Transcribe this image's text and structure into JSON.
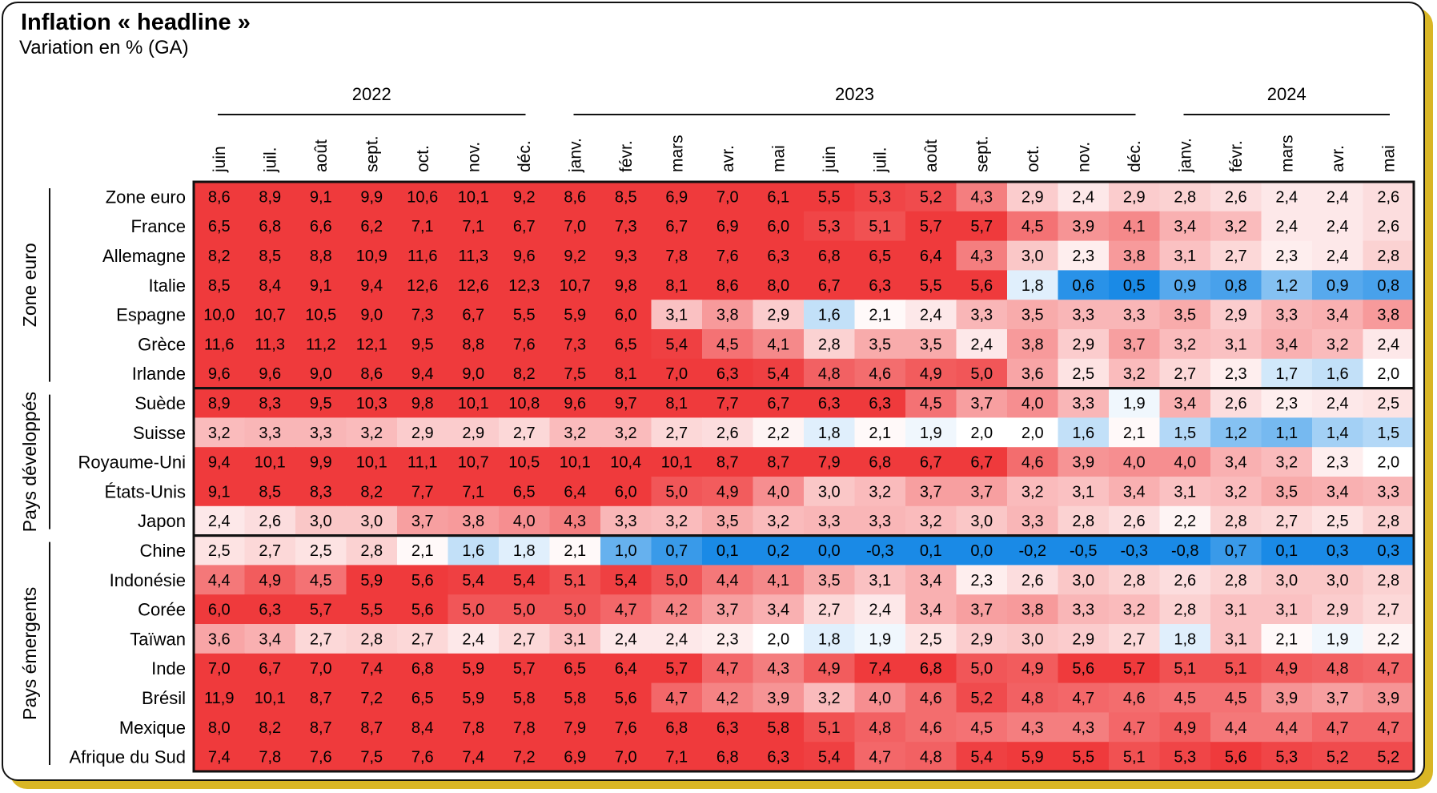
{
  "title": "Inflation « headline »",
  "subtitle": "Variation en % (GA)",
  "chart_data": {
    "type": "heatmap",
    "years": [
      {
        "label": "2022",
        "span": [
          0,
          6
        ]
      },
      {
        "label": "2023",
        "span": [
          7,
          18
        ]
      },
      {
        "label": "2024",
        "span": [
          19,
          23
        ]
      }
    ],
    "months": [
      "juin",
      "juil.",
      "août",
      "sept.",
      "oct.",
      "nov.",
      "déc.",
      "janv.",
      "févr.",
      "mars",
      "avr.",
      "mai",
      "juin",
      "juil.",
      "août",
      "sept.",
      "oct.",
      "nov.",
      "déc.",
      "janv.",
      "févr.",
      "mars",
      "avr.",
      "mai"
    ],
    "groups": [
      {
        "label": "Zone euro",
        "rows": [
          0,
          6
        ]
      },
      {
        "label": "Pays développés",
        "rows": [
          7,
          11
        ]
      },
      {
        "label": "Pays émergents",
        "rows": [
          12,
          19
        ]
      }
    ],
    "countries": [
      "Zone euro",
      "France",
      "Allemagne",
      "Italie",
      "Espagne",
      "Grèce",
      "Irlande",
      "Suède",
      "Suisse",
      "Royaume-Uni",
      "États-Unis",
      "Japon",
      "Chine",
      "Indonésie",
      "Corée",
      "Taïwan",
      "Inde",
      "Brésil",
      "Mexique",
      "Afrique du Sud"
    ],
    "values": [
      [
        8.6,
        8.9,
        9.1,
        9.9,
        10.6,
        10.1,
        9.2,
        8.6,
        8.5,
        6.9,
        7.0,
        6.1,
        5.5,
        5.3,
        5.2,
        4.3,
        2.9,
        2.4,
        2.9,
        2.8,
        2.6,
        2.4,
        2.4,
        2.6
      ],
      [
        6.5,
        6.8,
        6.6,
        6.2,
        7.1,
        7.1,
        6.7,
        7.0,
        7.3,
        6.7,
        6.9,
        6.0,
        5.3,
        5.1,
        5.7,
        5.7,
        4.5,
        3.9,
        4.1,
        3.4,
        3.2,
        2.4,
        2.4,
        2.6
      ],
      [
        8.2,
        8.5,
        8.8,
        10.9,
        11.6,
        11.3,
        9.6,
        9.2,
        9.3,
        7.8,
        7.6,
        6.3,
        6.8,
        6.5,
        6.4,
        4.3,
        3.0,
        2.3,
        3.8,
        3.1,
        2.7,
        2.3,
        2.4,
        2.8
      ],
      [
        8.5,
        8.4,
        9.1,
        9.4,
        12.6,
        12.6,
        12.3,
        10.7,
        9.8,
        8.1,
        8.6,
        8.0,
        6.7,
        6.3,
        5.5,
        5.6,
        1.8,
        0.6,
        0.5,
        0.9,
        0.8,
        1.2,
        0.9,
        0.8
      ],
      [
        10.0,
        10.7,
        10.5,
        9.0,
        7.3,
        6.7,
        5.5,
        5.9,
        6.0,
        3.1,
        3.8,
        2.9,
        1.6,
        2.1,
        2.4,
        3.3,
        3.5,
        3.3,
        3.3,
        3.5,
        2.9,
        3.3,
        3.4,
        3.8
      ],
      [
        11.6,
        11.3,
        11.2,
        12.1,
        9.5,
        8.8,
        7.6,
        7.3,
        6.5,
        5.4,
        4.5,
        4.1,
        2.8,
        3.5,
        3.5,
        2.4,
        3.8,
        2.9,
        3.7,
        3.2,
        3.1,
        3.4,
        3.2,
        2.4
      ],
      [
        9.6,
        9.6,
        9.0,
        8.6,
        9.4,
        9.0,
        8.2,
        7.5,
        8.1,
        7.0,
        6.3,
        5.4,
        4.8,
        4.6,
        4.9,
        5.0,
        3.6,
        2.5,
        3.2,
        2.7,
        2.3,
        1.7,
        1.6,
        2.0
      ],
      [
        8.9,
        8.3,
        9.5,
        10.3,
        9.8,
        10.1,
        10.8,
        9.6,
        9.7,
        8.1,
        7.7,
        6.7,
        6.3,
        6.3,
        4.5,
        3.7,
        4.0,
        3.3,
        1.9,
        3.4,
        2.6,
        2.3,
        2.4,
        2.5
      ],
      [
        3.2,
        3.3,
        3.3,
        3.2,
        2.9,
        2.9,
        2.7,
        3.2,
        3.2,
        2.7,
        2.6,
        2.2,
        1.8,
        2.1,
        1.9,
        2.0,
        2.0,
        1.6,
        2.1,
        1.5,
        1.2,
        1.1,
        1.4,
        1.5
      ],
      [
        9.4,
        10.1,
        9.9,
        10.1,
        11.1,
        10.7,
        10.5,
        10.1,
        10.4,
        10.1,
        8.7,
        8.7,
        7.9,
        6.8,
        6.7,
        6.7,
        4.6,
        3.9,
        4.0,
        4.0,
        3.4,
        3.2,
        2.3,
        2.0
      ],
      [
        9.1,
        8.5,
        8.3,
        8.2,
        7.7,
        7.1,
        6.5,
        6.4,
        6.0,
        5.0,
        4.9,
        4.0,
        3.0,
        3.2,
        3.7,
        3.7,
        3.2,
        3.1,
        3.4,
        3.1,
        3.2,
        3.5,
        3.4,
        3.3
      ],
      [
        2.4,
        2.6,
        3.0,
        3.0,
        3.7,
        3.8,
        4.0,
        4.3,
        3.3,
        3.2,
        3.5,
        3.2,
        3.3,
        3.3,
        3.2,
        3.0,
        3.3,
        2.8,
        2.6,
        2.2,
        2.8,
        2.7,
        2.5,
        2.8
      ],
      [
        2.5,
        2.7,
        2.5,
        2.8,
        2.1,
        1.6,
        1.8,
        2.1,
        1.0,
        0.7,
        0.1,
        0.2,
        0.0,
        -0.3,
        0.1,
        0.0,
        -0.2,
        -0.5,
        -0.3,
        -0.8,
        0.7,
        0.1,
        0.3,
        0.3
      ],
      [
        4.4,
        4.9,
        4.5,
        5.9,
        5.6,
        5.4,
        5.4,
        5.1,
        5.4,
        5.0,
        4.4,
        4.1,
        3.5,
        3.1,
        3.4,
        2.3,
        2.6,
        3.0,
        2.8,
        2.6,
        2.8,
        3.0,
        3.0,
        2.8
      ],
      [
        6.0,
        6.3,
        5.7,
        5.5,
        5.6,
        5.0,
        5.0,
        5.0,
        4.7,
        4.2,
        3.7,
        3.4,
        2.7,
        2.4,
        3.4,
        3.7,
        3.8,
        3.3,
        3.2,
        2.8,
        3.1,
        3.1,
        2.9,
        2.7
      ],
      [
        3.6,
        3.4,
        2.7,
        2.8,
        2.7,
        2.4,
        2.7,
        3.1,
        2.4,
        2.4,
        2.3,
        2.0,
        1.8,
        1.9,
        2.5,
        2.9,
        3.0,
        2.9,
        2.7,
        1.8,
        3.1,
        2.1,
        1.9,
        2.2
      ],
      [
        7.0,
        6.7,
        7.0,
        7.4,
        6.8,
        5.9,
        5.7,
        6.5,
        6.4,
        5.7,
        4.7,
        4.3,
        4.9,
        7.4,
        6.8,
        5.0,
        4.9,
        5.6,
        5.7,
        5.1,
        5.1,
        4.9,
        4.8,
        4.7
      ],
      [
        11.9,
        10.1,
        8.7,
        7.2,
        6.5,
        5.9,
        5.8,
        5.8,
        5.6,
        4.7,
        4.2,
        3.9,
        3.2,
        4.0,
        4.6,
        5.2,
        4.8,
        4.7,
        4.6,
        4.5,
        4.5,
        3.9,
        3.7,
        3.9
      ],
      [
        8.0,
        8.2,
        8.7,
        8.7,
        8.4,
        7.8,
        7.8,
        7.9,
        7.6,
        6.8,
        6.3,
        5.8,
        5.1,
        4.8,
        4.6,
        4.5,
        4.3,
        4.3,
        4.7,
        4.9,
        4.4,
        4.4,
        4.7,
        4.7
      ],
      [
        7.4,
        7.8,
        7.6,
        7.5,
        7.6,
        7.4,
        7.2,
        6.9,
        7.0,
        7.1,
        6.8,
        6.3,
        5.4,
        4.7,
        4.8,
        5.4,
        5.9,
        5.5,
        5.1,
        5.3,
        5.6,
        5.3,
        5.2,
        5.2
      ]
    ],
    "color_scale": {
      "low": "#1a8ae6",
      "mid": "#ffffff",
      "high": "#ef3a3c",
      "low_value": 0.5,
      "mid_value": 2.0,
      "high_value": 5.5
    }
  }
}
